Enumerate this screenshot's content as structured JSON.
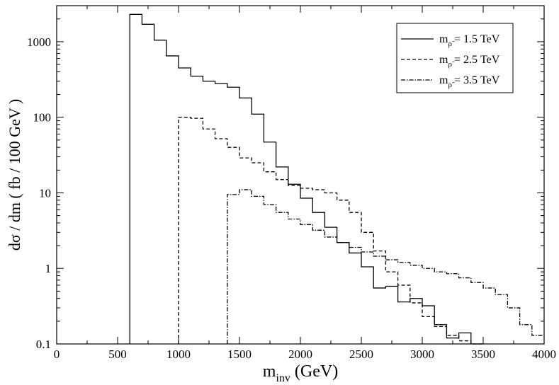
{
  "chart_data": {
    "type": "line",
    "subtype": "step-histogram",
    "title": "",
    "xlabel": "m",
    "xlabel_sub": "inv",
    "xlabel_unit": "(GeV)",
    "ylabel": "dσ / dm ( fb / 100 GeV )",
    "xlim": [
      0,
      4000
    ],
    "ylim": [
      0.1,
      3000
    ],
    "yscale": "log",
    "x_ticks": [
      0,
      500,
      1000,
      1500,
      2000,
      2500,
      3000,
      3500,
      4000
    ],
    "y_ticks": [
      0.1,
      1,
      10,
      100,
      1000
    ],
    "y_tick_labels": [
      "0.1",
      "1",
      "10",
      "100",
      "1000"
    ],
    "grid": false,
    "legend_position": "top-right",
    "bin_width": 100,
    "series": [
      {
        "name": "m",
        "name_sub": "ρ̃",
        "name_value": "= 1.5 TeV",
        "style": "solid",
        "bin_start": 600,
        "values": [
          2300,
          1700,
          1050,
          650,
          450,
          350,
          300,
          280,
          250,
          180,
          110,
          47,
          22,
          13,
          8.5,
          5.5,
          3.5,
          2.2,
          1.6,
          1.05,
          0.55,
          0.58,
          0.36,
          0.4,
          0.32,
          0.18,
          0.12,
          0.14,
          0.1
        ]
      },
      {
        "name": "m",
        "name_sub": "ρ̃",
        "name_value": "= 2.5 TeV",
        "style": "dashed",
        "bin_start": 1000,
        "values": [
          100,
          97,
          70,
          52,
          40,
          29,
          25,
          19,
          15,
          12.5,
          11.5,
          11,
          10,
          8,
          5.5,
          3,
          1.7,
          0.9,
          0.6,
          0.35,
          0.23,
          0.17,
          0.13,
          0.11,
          0.1
        ]
      },
      {
        "name": "m",
        "name_sub": "ρ̃",
        "name_value": "= 3.5 TeV",
        "style": "dashdot",
        "bin_start": 1400,
        "values": [
          9.5,
          11,
          9,
          7,
          5.5,
          4.5,
          3.8,
          3.2,
          2.6,
          2.2,
          1.9,
          1.65,
          1.45,
          1.3,
          1.2,
          1.1,
          1.0,
          0.9,
          0.85,
          0.75,
          0.65,
          0.55,
          0.45,
          0.3,
          0.18,
          0.13
        ]
      }
    ]
  }
}
